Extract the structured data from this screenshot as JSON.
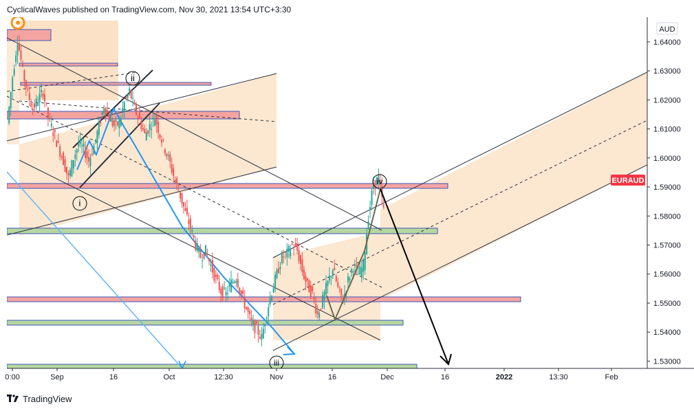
{
  "header": {
    "publisher_line": "CyclicalWaves published on TradingView.com, Nov 30, 2021 13:54 UTC+3:30"
  },
  "footer": {
    "brand": "TradingView",
    "logo_icon": "tradingview-logo-icon"
  },
  "colors": {
    "bull_candle": "#26a69a",
    "bear_candle": "#ef5350",
    "channel_fill": "#f8c998",
    "zone_red_fill": "#f4a4a0",
    "zone_red_border": "#3e56b8",
    "zone_green_fill": "#b6d7a0",
    "zone_green_border": "#3e56b8",
    "blue_line": "#2196f3",
    "symbol_badge": "#f23645"
  },
  "chart_data": {
    "type": "candlestick",
    "symbol": "EURAUD",
    "currency": "AUD",
    "y_ticks": [
      "1.64000",
      "1.63000",
      "1.62000",
      "1.61000",
      "1.60000",
      "1.59000",
      "1.58000",
      "1.57000",
      "1.56000",
      "1.55000",
      "1.54000",
      "1.53000"
    ],
    "ylim": [
      1.5275,
      1.6485
    ],
    "x_ticks": [
      "0:00",
      "Sep",
      "16",
      "Oct",
      "12:30",
      "Nov",
      "16",
      "Dec",
      "16",
      "2022",
      "13:30",
      "Feb"
    ],
    "wave_labels": [
      "i",
      "ii",
      "iii",
      "iv"
    ],
    "price_path": [
      [
        0,
        1.612
      ],
      [
        1,
        1.628
      ],
      [
        2,
        1.641
      ],
      [
        3,
        1.63
      ],
      [
        4,
        1.622
      ],
      [
        5,
        1.617
      ],
      [
        6,
        1.62
      ],
      [
        7,
        1.623
      ],
      [
        8,
        1.614
      ],
      [
        9,
        1.609
      ],
      [
        10,
        1.604
      ],
      [
        11,
        1.599
      ],
      [
        12,
        1.593
      ],
      [
        13,
        1.6
      ],
      [
        14,
        1.605
      ],
      [
        15,
        1.603
      ],
      [
        16,
        1.599
      ],
      [
        17,
        1.604
      ],
      [
        18,
        1.611
      ],
      [
        19,
        1.618
      ],
      [
        20,
        1.614
      ],
      [
        21,
        1.611
      ],
      [
        22,
        1.612
      ],
      [
        23,
        1.619
      ],
      [
        24,
        1.623
      ],
      [
        25,
        1.617
      ],
      [
        26,
        1.613
      ],
      [
        27,
        1.608
      ],
      [
        28,
        1.611
      ],
      [
        29,
        1.614
      ],
      [
        30,
        1.608
      ],
      [
        31,
        1.603
      ],
      [
        32,
        1.598
      ],
      [
        33,
        1.592
      ],
      [
        34,
        1.587
      ],
      [
        35,
        1.581
      ],
      [
        36,
        1.576
      ],
      [
        37,
        1.57
      ],
      [
        38,
        1.566
      ],
      [
        39,
        1.568
      ],
      [
        40,
        1.563
      ],
      [
        41,
        1.558
      ],
      [
        42,
        1.554
      ],
      [
        43,
        1.553
      ],
      [
        44,
        1.557
      ],
      [
        45,
        1.559
      ],
      [
        46,
        1.553
      ],
      [
        47,
        1.548
      ],
      [
        48,
        1.543
      ],
      [
        49,
        1.541
      ],
      [
        50,
        1.538
      ],
      [
        51,
        1.547
      ],
      [
        52,
        1.554
      ],
      [
        53,
        1.56
      ],
      [
        54,
        1.566
      ],
      [
        55,
        1.567
      ],
      [
        56,
        1.57
      ],
      [
        57,
        1.568
      ],
      [
        58,
        1.561
      ],
      [
        59,
        1.556
      ],
      [
        60,
        1.553
      ],
      [
        61,
        1.546
      ],
      [
        62,
        1.551
      ],
      [
        63,
        1.557
      ],
      [
        64,
        1.562
      ],
      [
        65,
        1.555
      ],
      [
        66,
        1.551
      ],
      [
        67,
        1.558
      ],
      [
        68,
        1.563
      ],
      [
        69,
        1.56
      ],
      [
        70,
        1.563
      ],
      [
        71,
        1.58
      ],
      [
        72,
        1.591
      ],
      [
        73,
        1.593
      ],
      [
        74,
        1.582
      ]
    ],
    "annotations": {
      "projection_target": 1.53,
      "symbol_last_price_label": "EURAUD"
    },
    "grid": false,
    "legend": "none"
  }
}
